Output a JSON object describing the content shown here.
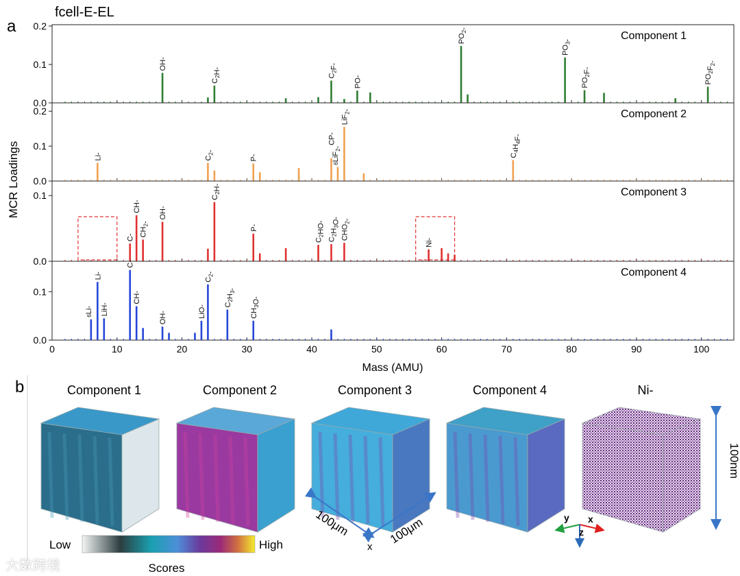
{
  "figure": {
    "title": "fcell-E-EL",
    "panel_a_label": "a",
    "panel_b_label": "b"
  },
  "chart_data": {
    "type": "bar",
    "xlabel": "Mass (AMU)",
    "ylabel": "MCR Loadings",
    "xlim": [
      0,
      105
    ],
    "x_ticks": [
      "0",
      "10",
      "20",
      "30",
      "40",
      "50",
      "60",
      "70",
      "80",
      "90",
      "100"
    ],
    "components": [
      {
        "name": "Component 1",
        "color": "#2e7d32",
        "ylim": [
          0,
          0.2
        ],
        "y_ticks": [
          "0.0",
          "0.1",
          "0.2"
        ],
        "peaks": [
          [
            17,
            0.078
          ],
          [
            24,
            0.014
          ],
          [
            25,
            0.045
          ],
          [
            36,
            0.012
          ],
          [
            41,
            0.015
          ],
          [
            43,
            0.058
          ],
          [
            45,
            0.01
          ],
          [
            47,
            0.032
          ],
          [
            49,
            0.027
          ],
          [
            63,
            0.148
          ],
          [
            64,
            0.022
          ],
          [
            79,
            0.118
          ],
          [
            82,
            0.033
          ],
          [
            85,
            0.026
          ],
          [
            96,
            0.012
          ],
          [
            101,
            0.042
          ]
        ],
        "labels": [
          {
            "m": 17,
            "text": "OH-"
          },
          {
            "m": 25,
            "text": "C2H-"
          },
          {
            "m": 43,
            "text": "C2F-"
          },
          {
            "m": 47,
            "text": "PO-"
          },
          {
            "m": 63,
            "text": "PO2-"
          },
          {
            "m": 79,
            "text": "PO3-"
          },
          {
            "m": 82,
            "text": "PO2F-"
          },
          {
            "m": 101,
            "text": "PO2F2-"
          }
        ]
      },
      {
        "name": "Component 2",
        "color": "#f0a050",
        "ylim": [
          0,
          0.22
        ],
        "y_ticks": [
          "0.0",
          "0.1",
          "0.2"
        ],
        "peaks": [
          [
            7,
            0.052
          ],
          [
            24,
            0.052
          ],
          [
            25,
            0.03
          ],
          [
            31,
            0.05
          ],
          [
            32,
            0.025
          ],
          [
            38,
            0.037
          ],
          [
            43,
            0.065
          ],
          [
            44,
            0.04
          ],
          [
            45,
            0.155
          ],
          [
            48,
            0.022
          ],
          [
            71,
            0.06
          ]
        ],
        "labels": [
          {
            "m": 7,
            "text": "Li-"
          },
          {
            "m": 24,
            "text": "C2-"
          },
          {
            "m": 31,
            "text": "P-"
          },
          {
            "m": 43,
            "text": "CP-"
          },
          {
            "m": 44,
            "text": "6LiF2-"
          },
          {
            "m": 45,
            "text": "LiF2-"
          },
          {
            "m": 71,
            "text": "C4H4F-"
          }
        ]
      },
      {
        "name": "Component 3",
        "color": "#e03030",
        "ylim": [
          0,
          0.12
        ],
        "y_ticks": [
          "0.0",
          "0.1"
        ],
        "peaks": [
          [
            12,
            0.027
          ],
          [
            13,
            0.07
          ],
          [
            14,
            0.033
          ],
          [
            17,
            0.06
          ],
          [
            24,
            0.019
          ],
          [
            25,
            0.09
          ],
          [
            31,
            0.042
          ],
          [
            32,
            0.012
          ],
          [
            36,
            0.02
          ],
          [
            41,
            0.025
          ],
          [
            43,
            0.026
          ],
          [
            45,
            0.028
          ],
          [
            58,
            0.018
          ],
          [
            60,
            0.02
          ],
          [
            61,
            0.012
          ],
          [
            62,
            0.01
          ]
        ],
        "labels": [
          {
            "m": 12,
            "text": "C-"
          },
          {
            "m": 13,
            "text": "CH-"
          },
          {
            "m": 14,
            "text": "CH2-"
          },
          {
            "m": 17,
            "text": "OH-"
          },
          {
            "m": 25,
            "text": "C2H-"
          },
          {
            "m": 31,
            "text": "P-"
          },
          {
            "m": 41,
            "text": "C2HO-"
          },
          {
            "m": 43,
            "text": "C2H3O-"
          },
          {
            "m": 45,
            "text": "CHO2-"
          },
          {
            "m": 58,
            "text": "Ni-"
          }
        ],
        "highlight_boxes": [
          [
            4,
            10
          ],
          [
            56,
            62
          ]
        ]
      },
      {
        "name": "Component 4",
        "color": "#2546d8",
        "ylim": [
          0,
          0.16
        ],
        "y_ticks": [
          "0.0",
          "0.1"
        ],
        "peaks": [
          [
            6,
            0.043
          ],
          [
            7,
            0.12
          ],
          [
            8,
            0.045
          ],
          [
            12,
            0.145
          ],
          [
            13,
            0.07
          ],
          [
            14,
            0.025
          ],
          [
            17,
            0.028
          ],
          [
            18,
            0.015
          ],
          [
            22,
            0.015
          ],
          [
            23,
            0.04
          ],
          [
            24,
            0.115
          ],
          [
            27,
            0.063
          ],
          [
            31,
            0.04
          ],
          [
            43,
            0.022
          ]
        ],
        "labels": [
          {
            "m": 6,
            "text": "6Li-"
          },
          {
            "m": 7,
            "text": "Li-"
          },
          {
            "m": 8,
            "text": "LiH-"
          },
          {
            "m": 12,
            "text": "C-"
          },
          {
            "m": 13,
            "text": "CH-"
          },
          {
            "m": 17,
            "text": "OH-"
          },
          {
            "m": 23,
            "text": "LiO-"
          },
          {
            "m": 24,
            "text": "C2-"
          },
          {
            "m": 27,
            "text": "C2H3-"
          },
          {
            "m": 31,
            "text": "CH3O-"
          }
        ]
      }
    ]
  },
  "panel_b": {
    "cubes": [
      {
        "title": "Component 1",
        "top": "#3a98c8",
        "left": "#2a6e8c",
        "right": "#dde6ea"
      },
      {
        "title": "Component 2",
        "top": "#5aa8d8",
        "left": "#9a3aa0",
        "right": "#3aa0d0"
      },
      {
        "title": "Component 3",
        "top": "#40a8d8",
        "left": "#45aedc",
        "right": "#4a78c0"
      },
      {
        "title": "Component 4",
        "top": "#3fa0c8",
        "left": "#4a9ad0",
        "right": "#5a6ac0"
      },
      {
        "title": "Ni-",
        "top": "#7a2a8a",
        "left": "#7a3a8c",
        "right": "#6a2a80"
      }
    ],
    "colorbar": {
      "low": "Low",
      "high": "High",
      "label": "Scores"
    },
    "dimension_x": "100μm",
    "dimension_y": "100μm",
    "axis_x_label": "x",
    "dimension_z": "100nm",
    "triad": {
      "x": "x",
      "y": "y",
      "z": "z"
    }
  },
  "watermark": "大数跨境"
}
